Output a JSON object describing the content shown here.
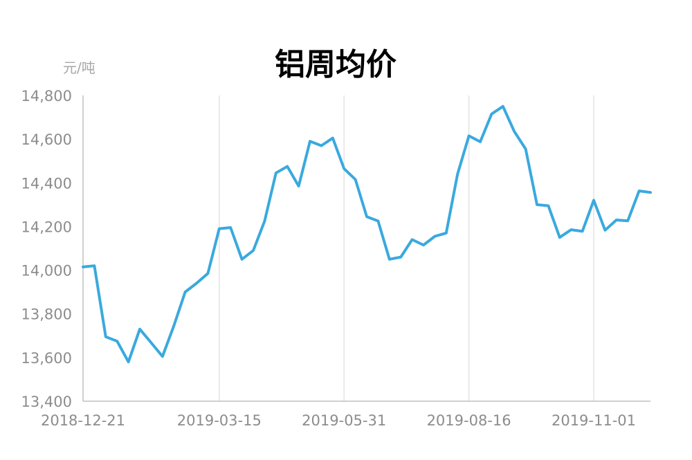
{
  "chart_data": {
    "type": "line",
    "title": "铝周均价",
    "ylabel": "元/吨",
    "xlabel": "",
    "ylim": [
      13400,
      14800
    ],
    "yticks": [
      13400,
      13600,
      13800,
      14000,
      14200,
      14400,
      14600,
      14800
    ],
    "ytick_labels": [
      "13,400",
      "13,600",
      "13,800",
      "14,000",
      "14,200",
      "14,400",
      "14,600",
      "14,800"
    ],
    "xtick_labels": [
      "2018-12-21",
      "2019-03-15",
      "2019-05-31",
      "2019-08-16",
      "2019-11-01"
    ],
    "xtick_week_index": [
      0,
      12,
      23,
      34,
      45
    ],
    "grid": "vertical",
    "line_color": "#3aa9de",
    "axis_color": "#bfbfbf",
    "series": [
      {
        "values": [
          14015,
          14020,
          13695,
          13675,
          13580,
          13730,
          13668,
          13605,
          13745,
          13900,
          13940,
          13985,
          14190,
          14195,
          14050,
          14090,
          14225,
          14445,
          14475,
          14385,
          14590,
          14570,
          14605,
          14465,
          14415,
          14245,
          14225,
          14050,
          14060,
          14140,
          14115,
          14155,
          14170,
          14440,
          14615,
          14588,
          14715,
          14750,
          14635,
          14555,
          14300,
          14295,
          14150,
          14185,
          14178,
          14320,
          14183,
          14230,
          14226,
          14363,
          14356
        ]
      }
    ]
  }
}
